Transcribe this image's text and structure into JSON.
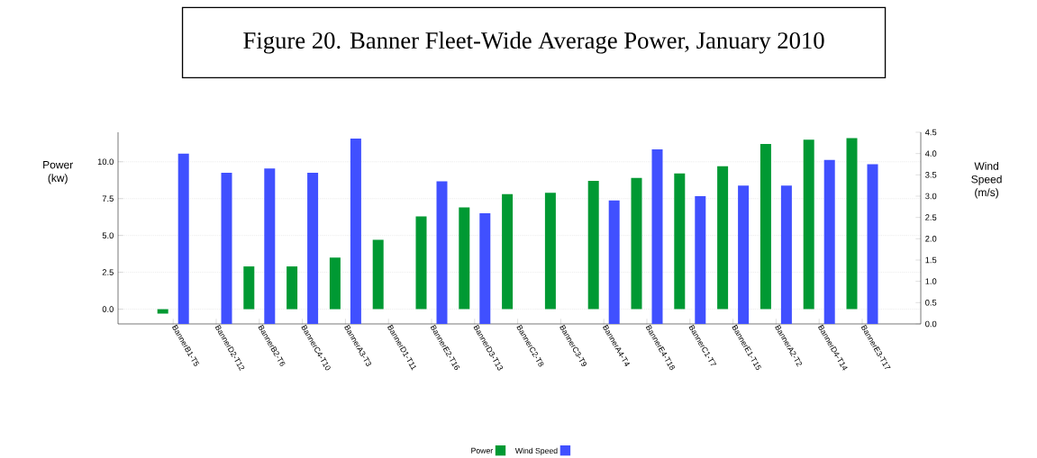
{
  "chart_data": {
    "type": "bar",
    "title": "Figure 20. Banner Fleet-Wide Average Power, January 2010",
    "ylabel": "Power (kw)",
    "y2label": "Wind Speed (m/s)",
    "categories": [
      "BannerB1-T5",
      "BannerD2-T12",
      "BannerB2-T6",
      "BannerC4-T10",
      "BannerA3-T3",
      "BannerD1-T11",
      "BannerE2-T16",
      "BannerD3-T13",
      "BannerC2-T8",
      "BannerC3-T9",
      "BannerA4-T4",
      "BannerE4-T18",
      "BannerC1-T7",
      "BannerE1-T15",
      "BannerA2-T2",
      "BannerD4-T14",
      "BannerE3-T17"
    ],
    "series": [
      {
        "name": "Power",
        "color": "#009933",
        "values": [
          -0.3,
          0,
          2.9,
          2.9,
          3.5,
          4.7,
          6.3,
          6.9,
          7.8,
          7.9,
          8.7,
          8.9,
          9.2,
          9.7,
          11.2,
          11.5,
          11.6
        ]
      },
      {
        "name": "Wind Speed",
        "color": "#4050ff",
        "axis": "y2",
        "values": [
          4.0,
          3.55,
          3.65,
          3.55,
          4.35,
          0,
          3.35,
          2.6,
          0,
          0,
          2.9,
          4.1,
          3.0,
          3.25,
          3.25,
          3.85,
          3.75
        ]
      }
    ],
    "ylim": [
      -1,
      12
    ],
    "yticks": [
      {
        "value": 0,
        "label": "0.0"
      },
      {
        "value": 2.5,
        "label": "2.5"
      },
      {
        "value": 5,
        "label": "5.0"
      },
      {
        "value": 7.5,
        "label": "7.5"
      },
      {
        "value": 10,
        "label": "10.0"
      }
    ],
    "y2lim": [
      0,
      4.5
    ],
    "y2ticks": [
      {
        "value": 0,
        "label": "0.0"
      },
      {
        "value": 0.5,
        "label": "0.5"
      },
      {
        "value": 1,
        "label": "1.0"
      },
      {
        "value": 1.5,
        "label": "1.5"
      },
      {
        "value": 2,
        "label": "2.0"
      },
      {
        "value": 2.5,
        "label": "2.5"
      },
      {
        "value": 3,
        "label": "3.0"
      },
      {
        "value": 3.5,
        "label": "3.5"
      },
      {
        "value": 4,
        "label": "4.0"
      },
      {
        "value": 4.5,
        "label": "4.5"
      }
    ],
    "grid": "y",
    "legend": "bottom"
  }
}
